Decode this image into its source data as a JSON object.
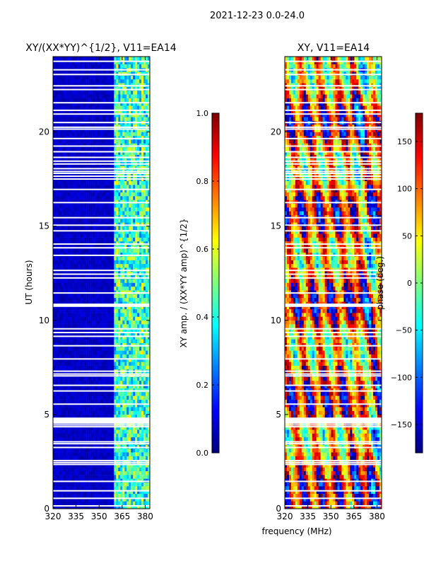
{
  "suptitle": "2021-12-23 0.0-24.0",
  "colormap": [
    "#00007f",
    "#0000ff",
    "#007fff",
    "#00ffff",
    "#7fff7f",
    "#ffff00",
    "#ff7f00",
    "#ff0000",
    "#7f0000"
  ],
  "chart_data": [
    {
      "type": "heatmap",
      "title": "XY/(XX*YY)^{1/2}, V11=EA14",
      "xlabel": "",
      "ylabel": "UT (hours)",
      "xlim": [
        320,
        383
      ],
      "ylim": [
        0,
        24
      ],
      "xticks": [
        320,
        335,
        350,
        365,
        380
      ],
      "yticks": [
        0,
        5,
        10,
        15,
        20
      ],
      "value_range": [
        0.0,
        1.0
      ],
      "description": "normalized XY amplitude; low (~0.05) below 360 MHz, patchy 0.3-0.6 between 361 and 383 MHz"
    },
    {
      "type": "heatmap",
      "title": "XY, V11=EA14",
      "xlabel": "frequency (MHz)",
      "ylabel": "",
      "xlim": [
        320,
        383
      ],
      "ylim": [
        0,
        24
      ],
      "xticks": [
        320,
        335,
        350,
        365,
        380
      ],
      "yticks": [
        0,
        5,
        10,
        15,
        20
      ],
      "value_range": [
        -180,
        180
      ],
      "description": "XY phase in degrees, wrapping structure across frequency and time"
    }
  ],
  "colorbars": [
    {
      "label": "XY amp. / (XX*YY amp)^{1/2}",
      "min": 0.0,
      "max": 1.0,
      "ticks": [
        "0.0",
        "0.2",
        "0.4",
        "0.6",
        "0.8",
        "1.0"
      ],
      "tick_values": [
        0.0,
        0.2,
        0.4,
        0.6,
        0.8,
        1.0
      ]
    },
    {
      "label": "phase (deg.)",
      "min": -180,
      "max": 180,
      "ticks": [
        "−150",
        "−100",
        "−50",
        "0",
        "50",
        "100",
        "150"
      ],
      "tick_values": [
        -150,
        -100,
        -50,
        0,
        50,
        100,
        150
      ]
    }
  ],
  "flagged_hours": [
    0.15,
    0.55,
    0.95,
    1.45,
    2.35,
    2.45,
    2.55,
    3.25,
    3.45,
    3.55,
    4.35,
    4.45,
    4.55,
    4.6,
    4.65,
    4.7,
    4.75,
    4.8,
    5.55,
    6.25,
    6.55,
    7.05,
    7.15,
    7.3,
    7.95,
    8.65,
    9.15,
    9.35,
    9.55,
    10.75,
    10.8,
    10.85,
    11.45,
    12.25,
    12.45,
    12.65,
    13.45,
    13.85,
    14.05,
    14.75,
    15.05,
    15.45,
    16.25,
    16.95,
    17.5,
    17.65,
    17.8,
    17.9,
    18.05,
    18.3,
    18.45,
    18.65,
    18.95,
    19.25,
    19.65,
    20.15,
    20.25,
    20.5,
    20.95,
    21.15,
    21.55,
    22.25,
    22.45,
    23.05,
    23.3,
    23.75
  ]
}
